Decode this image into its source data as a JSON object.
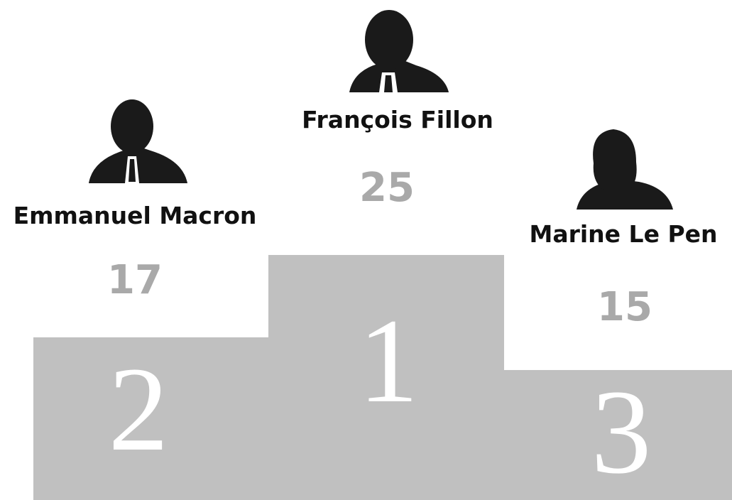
{
  "podium": [
    {
      "place": 2,
      "name": "Emmanuel Macron",
      "score": 17
    },
    {
      "place": 1,
      "name": "François Fillon",
      "score": 25
    },
    {
      "place": 3,
      "name": "Marine Le Pen",
      "score": 15
    }
  ]
}
